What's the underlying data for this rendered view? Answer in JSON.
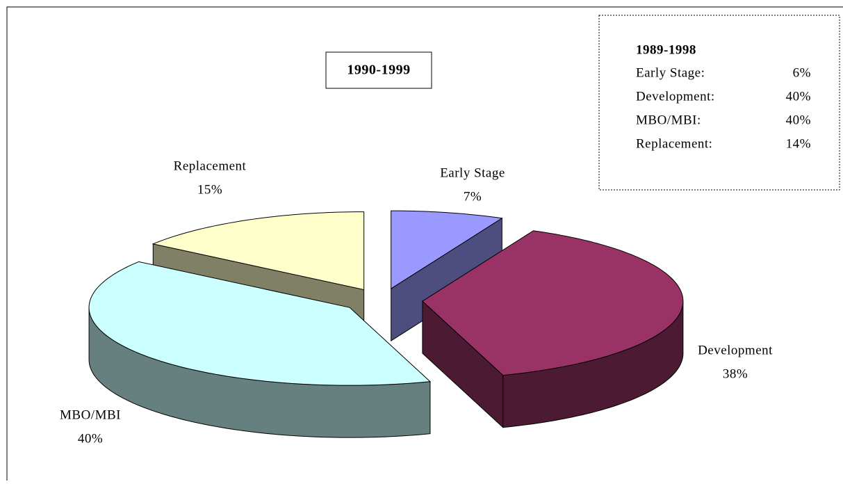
{
  "chart_data": {
    "type": "pie3d",
    "title": "1990-1999",
    "categories": [
      "Early Stage",
      "Development",
      "MBO/MBI",
      "Replacement"
    ],
    "values": [
      7,
      38,
      40,
      15
    ],
    "value_labels": [
      "7%",
      "38%",
      "40%",
      "15%"
    ],
    "colors": [
      "#9999ff",
      "#993366",
      "#ccffff",
      "#ffffcc"
    ],
    "side_colors": [
      "#4d4d80",
      "#4d1a33",
      "#668080",
      "#808066"
    ],
    "annotation": {
      "title": "1989-1998",
      "rows": [
        [
          "Early Stage:",
          "6%"
        ],
        [
          "Development:",
          "40%"
        ],
        [
          "MBO/MBI:",
          "40%"
        ],
        [
          "Replacement:",
          "14%"
        ]
      ]
    }
  }
}
